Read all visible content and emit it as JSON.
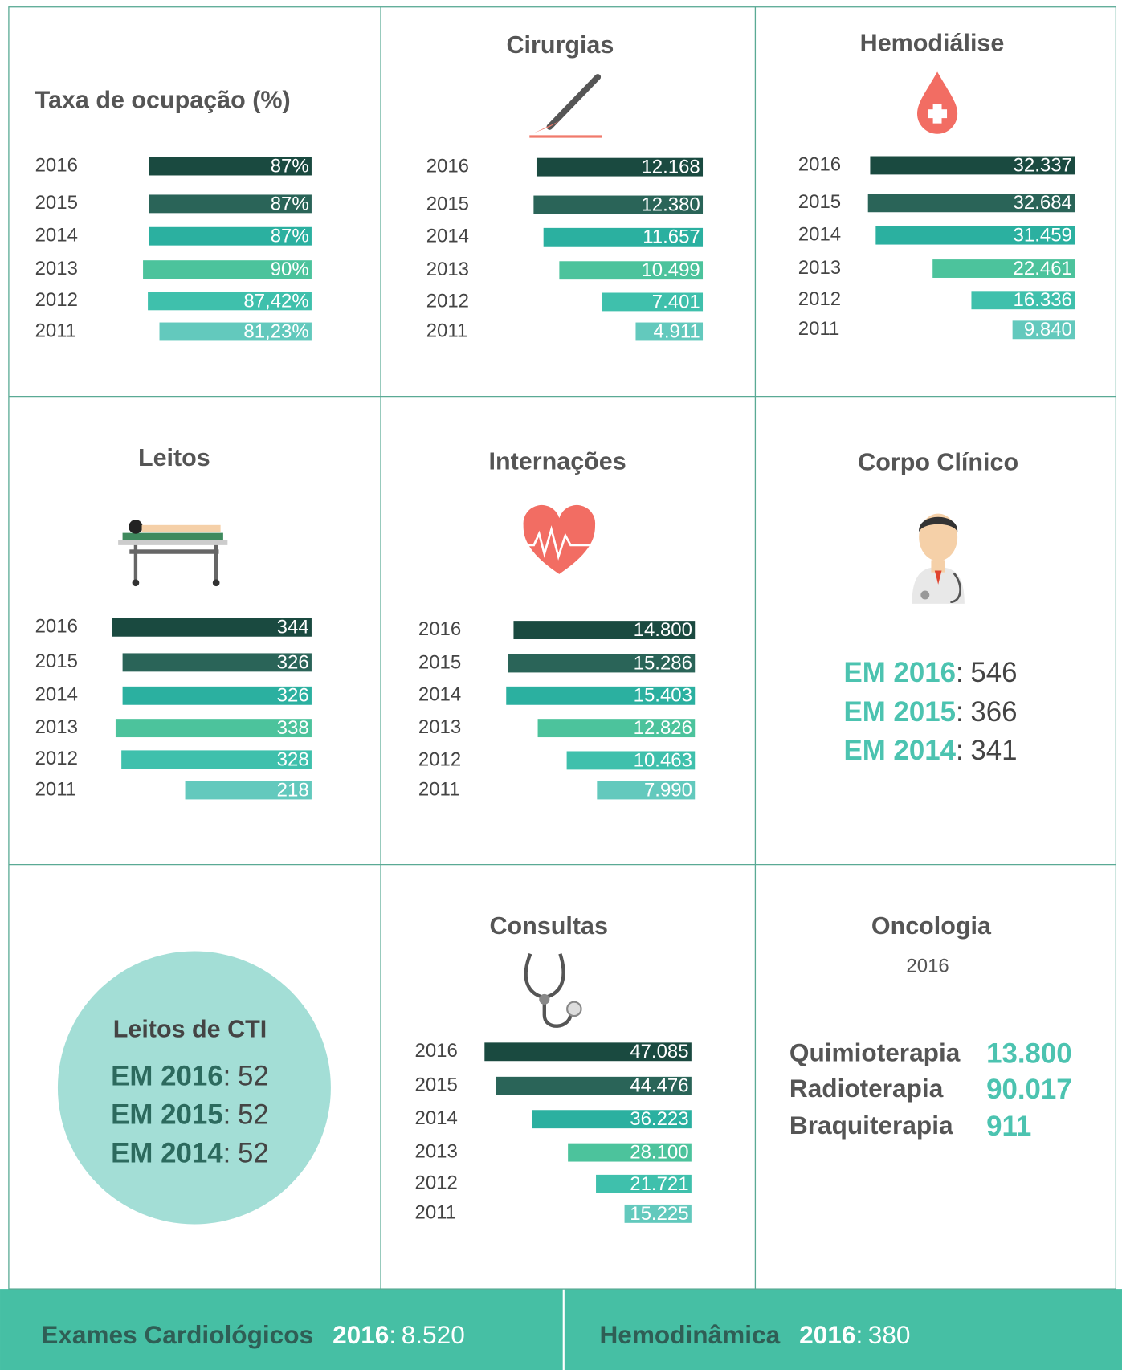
{
  "chart_data": [
    {
      "type": "bar",
      "title": "Taxa de ocupação (%)",
      "categories": [
        "2016",
        "2015",
        "2014",
        "2013",
        "2012",
        "2011"
      ],
      "values": [
        87,
        87,
        87,
        90,
        87.42,
        81.23
      ],
      "value_labels": [
        "87%",
        "87%",
        "87%",
        "90%",
        "87,42%",
        "81,23%"
      ],
      "colors": [
        "#1a4a40",
        "#2a6458",
        "#2bb0a0",
        "#4cc39c",
        "#3fc0ac",
        "#63c9bd"
      ],
      "xlim": [
        0,
        100
      ]
    },
    {
      "type": "bar",
      "title": "Cirurgias",
      "categories": [
        "2016",
        "2015",
        "2014",
        "2013",
        "2012",
        "2011"
      ],
      "values": [
        12168,
        12380,
        11657,
        10499,
        7401,
        4911
      ],
      "value_labels": [
        "12.168",
        "12.380",
        "11.657",
        "10.499",
        "7.401",
        "4.911"
      ],
      "colors": [
        "#1a4a40",
        "#2a6458",
        "#2bb0a0",
        "#4cc39c",
        "#3fc0ac",
        "#63c9bd"
      ],
      "xlim": [
        0,
        13000
      ]
    },
    {
      "type": "bar",
      "title": "Hemodiálise",
      "categories": [
        "2016",
        "2015",
        "2014",
        "2013",
        "2012",
        "2011"
      ],
      "values": [
        32337,
        32684,
        31459,
        22461,
        16336,
        9840
      ],
      "value_labels": [
        "32.337",
        "32.684",
        "31.459",
        "22.461",
        "16.336",
        "9.840"
      ],
      "colors": [
        "#1a4a40",
        "#2a6458",
        "#2bb0a0",
        "#4cc39c",
        "#3fc0ac",
        "#63c9bd"
      ],
      "xlim": [
        0,
        35000
      ]
    },
    {
      "type": "bar",
      "title": "Leitos",
      "categories": [
        "2016",
        "2015",
        "2014",
        "2013",
        "2012",
        "2011"
      ],
      "values": [
        344,
        326,
        326,
        338,
        328,
        218
      ],
      "value_labels": [
        "344",
        "326",
        "326",
        "338",
        "328",
        "218"
      ],
      "colors": [
        "#1a4a40",
        "#2a6458",
        "#2bb0a0",
        "#4cc39c",
        "#3fc0ac",
        "#63c9bd"
      ],
      "xlim": [
        0,
        400
      ]
    },
    {
      "type": "bar",
      "title": "Internações",
      "categories": [
        "2016",
        "2015",
        "2014",
        "2013",
        "2012",
        "2011"
      ],
      "values": [
        14800,
        15286,
        15403,
        12826,
        10463,
        7990
      ],
      "value_labels": [
        "14.800",
        "15.286",
        "15.403",
        "12.826",
        "10.463",
        "7.990"
      ],
      "colors": [
        "#1a4a40",
        "#2a6458",
        "#2bb0a0",
        "#4cc39c",
        "#3fc0ac",
        "#63c9bd"
      ],
      "xlim": [
        0,
        16000
      ]
    },
    {
      "type": "bar",
      "title": "Consultas",
      "categories": [
        "2016",
        "2015",
        "2014",
        "2013",
        "2012",
        "2011"
      ],
      "values": [
        47085,
        44476,
        36223,
        28100,
        21721,
        15225
      ],
      "value_labels": [
        "47.085",
        "44.476",
        "36.223",
        "28.100",
        "21.721",
        "15.225"
      ],
      "colors": [
        "#1a4a40",
        "#2a6458",
        "#2bb0a0",
        "#4cc39c",
        "#3fc0ac",
        "#63c9bd"
      ],
      "xlim": [
        0,
        50000
      ]
    }
  ],
  "corpo_clinico": {
    "title": "Corpo Clínico",
    "separator": ":",
    "items": [
      {
        "label": "EM 2016",
        "value": 546
      },
      {
        "label": "EM 2015",
        "value": 366
      },
      {
        "label": "EM 2014",
        "value": 341
      }
    ]
  },
  "leitos_cti": {
    "title": "Leitos de CTI",
    "separator": ":",
    "items": [
      {
        "label": "EM 2016",
        "value": 52
      },
      {
        "label": "EM 2015",
        "value": 52
      },
      {
        "label": "EM 2014",
        "value": 52
      }
    ]
  },
  "oncologia": {
    "title": "Oncologia",
    "year": "2016",
    "items": [
      {
        "label": "Quimioterapia",
        "value": 13800,
        "value_label": "13.800"
      },
      {
        "label": "Radioterapia",
        "value": 90017,
        "value_label": "90.017"
      },
      {
        "label": "Braquiterapia",
        "value": 911,
        "value_label": "911"
      }
    ]
  },
  "footer": [
    {
      "label": "Exames Cardiológicos",
      "year": "2016",
      "separator": ":",
      "value": 8520,
      "value_label": "8.520"
    },
    {
      "label": "Hemodinâmica",
      "year": "2016",
      "separator": ":",
      "value": 380
    }
  ]
}
